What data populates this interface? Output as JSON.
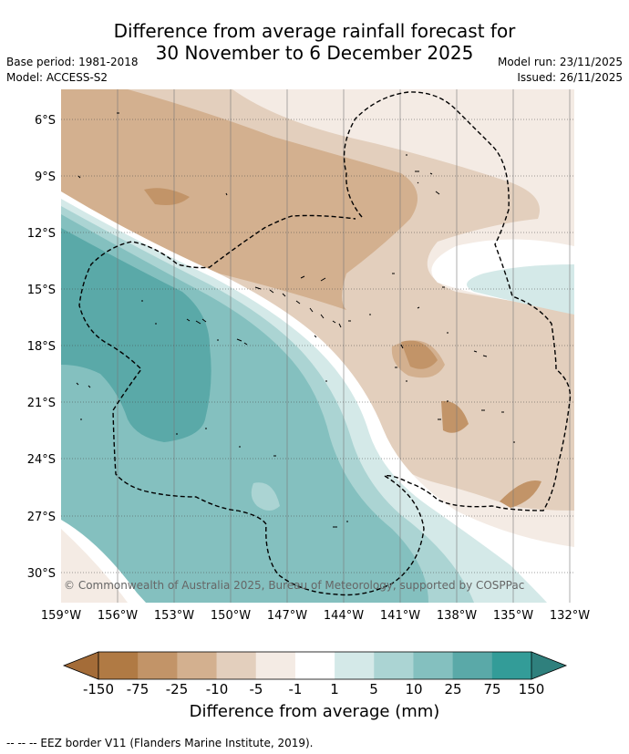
{
  "header": {
    "title_line1": "Difference from average rainfall forecast for",
    "title_line2": "30 November to 6 December 2025",
    "base_period": "Base period: 1981-2018",
    "model": "Model: ACCESS-S2",
    "model_run": "Model run: 23/11/2025",
    "issued": "Issued: 26/11/2025"
  },
  "map": {
    "lat_labels": [
      "6°S",
      "9°S",
      "12°S",
      "15°S",
      "18°S",
      "21°S",
      "24°S",
      "27°S",
      "30°S"
    ],
    "lon_labels": [
      "159°W",
      "156°W",
      "153°W",
      "150°W",
      "147°W",
      "144°W",
      "141°W",
      "138°W",
      "135°W",
      "132°W"
    ],
    "copyright": "© Commonwealth of Australia 2025, Bureau of Meteorology, supported by COSPPac"
  },
  "colorbar": {
    "labels": [
      "-150",
      "-75",
      "-25",
      "-10",
      "-5",
      "-1",
      "1",
      "5",
      "10",
      "25",
      "75",
      "150"
    ],
    "colors": [
      "#a46c38",
      "#b07a44",
      "#c29468",
      "#d3b08f",
      "#e3cfbd",
      "#f4ebe4",
      "#ffffff",
      "#d4e9e8",
      "#abd4d3",
      "#84c0bf",
      "#5aa9a8",
      "#339c98",
      "#2f807d"
    ],
    "title": "Difference from average (mm)"
  },
  "footer": {
    "eez_note": "--  --  -- EEZ border V11 (Flanders Marine Institute, 2019)."
  }
}
